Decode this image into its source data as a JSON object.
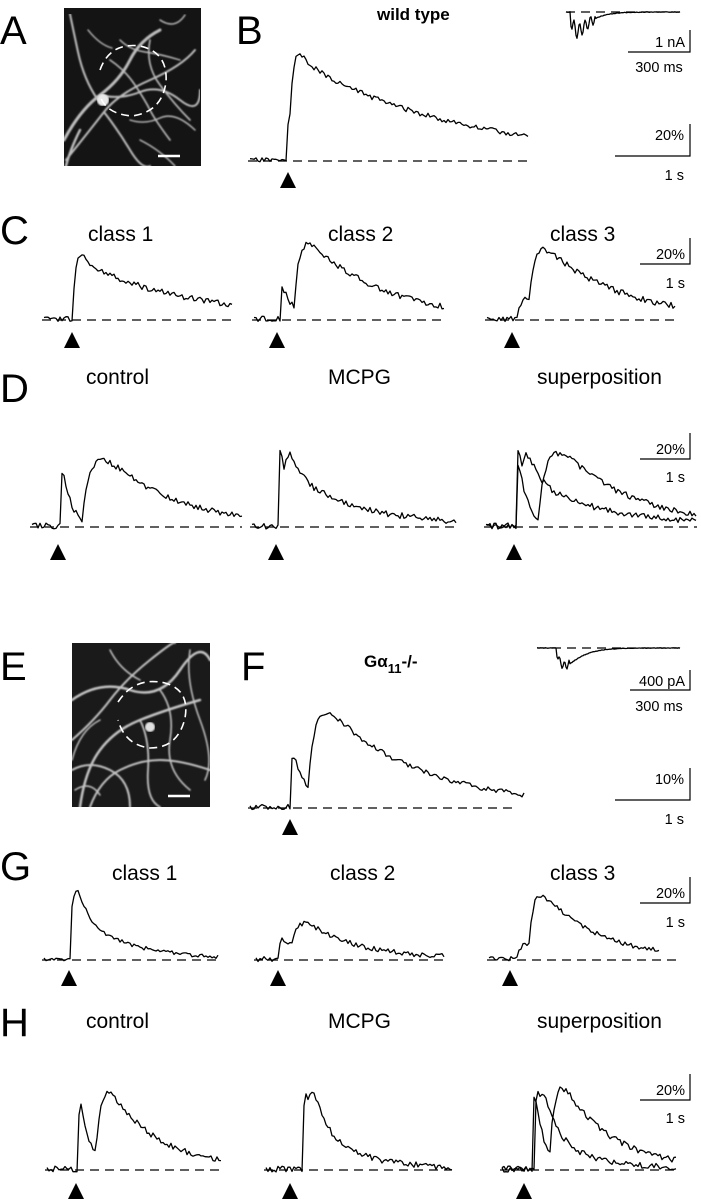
{
  "figure": {
    "panel_letters": [
      "A",
      "B",
      "C",
      "D",
      "E",
      "F",
      "G",
      "H"
    ],
    "sections": [
      {
        "id": "wt",
        "condition_label": "wild type"
      },
      {
        "id": "ko",
        "condition_label_main": "Gα",
        "condition_label_sub": "11",
        "condition_label_suffix": "-/-"
      }
    ]
  },
  "labels": {
    "class1": "class 1",
    "class2": "class 2",
    "class3": "class 3",
    "control": "control",
    "mcpg": "MCPG",
    "superposition": "superposition"
  },
  "scalebars": {
    "wt_current": {
      "amplitude": "1 nA",
      "time": "300 ms"
    },
    "ko_current": {
      "amplitude": "400 pA",
      "time": "300 ms"
    },
    "b": {
      "amplitude": "20%",
      "time": "1 s"
    },
    "c": {
      "amplitude": "20%",
      "time": "1 s"
    },
    "d": {
      "amplitude": "20%",
      "time": "1 s"
    },
    "f": {
      "amplitude": "10%",
      "time": "1 s"
    },
    "g": {
      "amplitude": "20%",
      "time": "1 s"
    },
    "h": {
      "amplitude": "20%",
      "time": "1 s"
    }
  },
  "colors": {
    "ink": "#000000",
    "image_background": "#141414",
    "dendrite": "#c8c8c8",
    "roi": "#ffffff"
  },
  "icons": {
    "stimulus": "triangle-up-icon"
  }
}
